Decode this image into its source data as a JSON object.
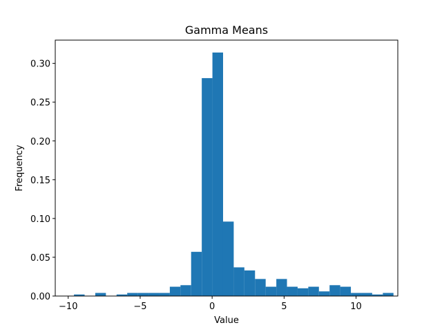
{
  "chart_data": {
    "type": "bar",
    "title": "Gamma Means",
    "xlabel": "Value",
    "ylabel": "Frequency",
    "xlim": [
      -10.9,
      12.9
    ],
    "ylim": [
      0,
      0.33
    ],
    "grid": false,
    "bar_color": "#1f77b4",
    "xticks": [
      -10,
      -5,
      0,
      5,
      10
    ],
    "xtick_labels": [
      "−10",
      "−5",
      "0",
      "5",
      "10"
    ],
    "yticks": [
      0.0,
      0.05,
      0.1,
      0.15,
      0.2,
      0.25,
      0.3
    ],
    "ytick_labels": [
      "0.00",
      "0.05",
      "0.10",
      "0.15",
      "0.20",
      "0.25",
      "0.30"
    ],
    "bins": [
      {
        "x0": -9.6,
        "x1": -8.86,
        "value": 0.002
      },
      {
        "x0": -8.86,
        "x1": -8.12,
        "value": 0.0
      },
      {
        "x0": -8.12,
        "x1": -7.38,
        "value": 0.004
      },
      {
        "x0": -7.38,
        "x1": -6.64,
        "value": 0.0
      },
      {
        "x0": -6.64,
        "x1": -5.9,
        "value": 0.002
      },
      {
        "x0": -5.9,
        "x1": -5.16,
        "value": 0.004
      },
      {
        "x0": -5.16,
        "x1": -4.42,
        "value": 0.004
      },
      {
        "x0": -4.42,
        "x1": -3.68,
        "value": 0.004
      },
      {
        "x0": -3.68,
        "x1": -2.94,
        "value": 0.004
      },
      {
        "x0": -2.94,
        "x1": -2.2,
        "value": 0.012
      },
      {
        "x0": -2.2,
        "x1": -1.46,
        "value": 0.014
      },
      {
        "x0": -1.46,
        "x1": -0.72,
        "value": 0.057
      },
      {
        "x0": -0.72,
        "x1": 0.02,
        "value": 0.281
      },
      {
        "x0": 0.02,
        "x1": 0.76,
        "value": 0.314
      },
      {
        "x0": 0.76,
        "x1": 1.5,
        "value": 0.096
      },
      {
        "x0": 1.5,
        "x1": 2.24,
        "value": 0.037
      },
      {
        "x0": 2.24,
        "x1": 2.98,
        "value": 0.033
      },
      {
        "x0": 2.98,
        "x1": 3.72,
        "value": 0.022
      },
      {
        "x0": 3.72,
        "x1": 4.46,
        "value": 0.012
      },
      {
        "x0": 4.46,
        "x1": 5.2,
        "value": 0.022
      },
      {
        "x0": 5.2,
        "x1": 5.94,
        "value": 0.012
      },
      {
        "x0": 5.94,
        "x1": 6.68,
        "value": 0.01
      },
      {
        "x0": 6.68,
        "x1": 7.42,
        "value": 0.012
      },
      {
        "x0": 7.42,
        "x1": 8.16,
        "value": 0.006
      },
      {
        "x0": 8.16,
        "x1": 8.9,
        "value": 0.014
      },
      {
        "x0": 8.9,
        "x1": 9.64,
        "value": 0.012
      },
      {
        "x0": 9.64,
        "x1": 10.38,
        "value": 0.004
      },
      {
        "x0": 10.38,
        "x1": 11.12,
        "value": 0.004
      },
      {
        "x0": 11.12,
        "x1": 11.86,
        "value": 0.002
      },
      {
        "x0": 11.86,
        "x1": 12.6,
        "value": 0.004
      }
    ]
  }
}
